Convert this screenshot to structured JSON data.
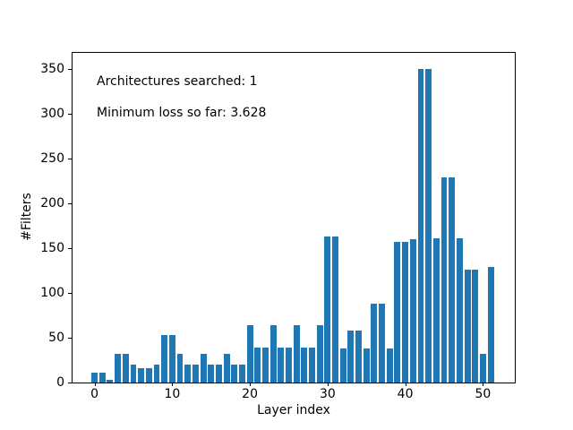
{
  "figure": {
    "background": "#ffffff",
    "annotations": {
      "line1": "Architectures searched: 1",
      "line2": "Minimum loss so far: 3.628"
    }
  },
  "chart_data": {
    "type": "bar",
    "title": "",
    "xlabel": "Layer index",
    "ylabel": "#Filters",
    "bar_color": "#1f77b4",
    "axis_color": "#000000",
    "grid": false,
    "legend": null,
    "categories": [
      0,
      1,
      2,
      3,
      4,
      5,
      6,
      7,
      8,
      9,
      10,
      11,
      12,
      13,
      14,
      15,
      16,
      17,
      18,
      19,
      20,
      21,
      22,
      23,
      24,
      25,
      26,
      27,
      28,
      29,
      30,
      31,
      32,
      33,
      34,
      35,
      36,
      37,
      38,
      39,
      40,
      41,
      42,
      43,
      44,
      45,
      46,
      47,
      48,
      49,
      50,
      51
    ],
    "values": [
      11,
      11,
      3,
      32,
      32,
      20,
      16,
      16,
      20,
      53,
      53,
      32,
      20,
      20,
      32,
      20,
      20,
      32,
      20,
      20,
      64,
      39,
      39,
      64,
      39,
      39,
      64,
      39,
      39,
      64,
      163,
      163,
      38,
      58,
      58,
      38,
      88,
      88,
      38,
      157,
      157,
      160,
      350,
      350,
      161,
      229,
      229,
      161,
      126,
      126,
      32,
      129
    ],
    "xticks": [
      0,
      10,
      20,
      30,
      40,
      50
    ],
    "yticks": [
      0,
      50,
      100,
      150,
      200,
      250,
      300,
      350
    ],
    "xlim": [
      -2.95,
      54.22
    ],
    "ylim": [
      0,
      369
    ],
    "annotations": [
      "Architectures searched: 1",
      "Minimum loss so far: 3.628"
    ]
  }
}
